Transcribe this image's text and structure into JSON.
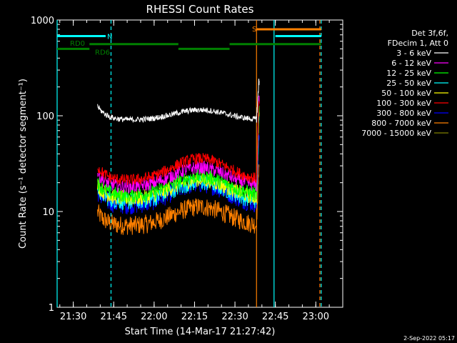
{
  "chart_data": {
    "type": "line",
    "title": "RHESSI Count Rates",
    "xlabel": "Start Time (14-Mar-17 21:27:42)",
    "ylabel": "Count Rate (s⁻¹ detector segment⁻¹)",
    "yscale": "log",
    "ylim": [
      1,
      1000
    ],
    "xlim": [
      "21:24",
      "23:10"
    ],
    "x_ticks": [
      "21:30",
      "21:45",
      "22:00",
      "22:15",
      "22:30",
      "22:45",
      "23:00"
    ],
    "y_ticks": [
      "1",
      "10",
      "100",
      "1000"
    ],
    "legend": {
      "placement": "right",
      "header": [
        "Det 3f,6f,",
        "FDecim 1, Att 0"
      ]
    },
    "series": [
      {
        "name": "3 - 6 keV",
        "color": "#ffffff",
        "base": 90,
        "amp": 1.28,
        "noise": 0.03,
        "spike": 230
      },
      {
        "name": "6 - 12 keV",
        "color": "#ff00ff",
        "base": 18,
        "amp": 1.6,
        "noise": 0.07,
        "spike": 150
      },
      {
        "name": "12 - 25 keV",
        "color": "#00ff00",
        "base": 14.5,
        "amp": 1.6,
        "noise": 0.08,
        "spike": 120
      },
      {
        "name": "25 - 50 keV",
        "color": "#00ffff",
        "base": 12.5,
        "amp": 1.62,
        "noise": 0.09,
        "spike": 100
      },
      {
        "name": "50 - 100 keV",
        "color": "#ffff00",
        "base": 13.5,
        "amp": 1.6,
        "noise": 0.08,
        "spike": 110
      },
      {
        "name": "100 - 300 keV",
        "color": "#ff0000",
        "base": 21,
        "amp": 1.7,
        "noise": 0.06,
        "spike": 140
      },
      {
        "name": "300 - 800 keV",
        "color": "#0000ff",
        "base": 11.5,
        "amp": 1.7,
        "noise": 0.1,
        "spike": 60
      },
      {
        "name": "800 - 7000 keV",
        "color": "#ff8000",
        "base": 7,
        "amp": 1.6,
        "noise": 0.1,
        "spike": 30
      },
      {
        "name": "7000 - 15000 keV",
        "color": "#808000",
        "base": 0,
        "amp": 1,
        "noise": 0,
        "spike": 0
      }
    ],
    "time_range": {
      "data_start": "21:39",
      "data_end": "22:39",
      "rise": "22:38"
    },
    "vertical_lines": [
      {
        "time": "21:24",
        "color": "#00ffff",
        "style": "solid"
      },
      {
        "time": "21:44",
        "color": "#00ffff",
        "style": "dashed"
      },
      {
        "time": "22:38",
        "color": "#ff8000",
        "style": "solid"
      },
      {
        "time": "22:44.5",
        "color": "#00ffff",
        "style": "solid"
      },
      {
        "time": "23:01.5",
        "color": "#ff8000",
        "style": "dashed"
      },
      {
        "time": "23:02",
        "color": "#00ffff",
        "style": "dashed"
      }
    ],
    "flag_bars": [
      {
        "label": "RD0",
        "color": "#008000",
        "y": 500,
        "segments": [
          [
            "21:24",
            "21:36"
          ]
        ]
      },
      {
        "label": "RD6",
        "color": "#008000",
        "y": 560,
        "segments": [
          [
            "21:36",
            "22:09"
          ],
          [
            "22:09",
            "22:28"
          ],
          [
            "22:28",
            "23:02"
          ]
        ],
        "step": [
          500,
          560,
          500,
          560
        ]
      },
      {
        "label": "N",
        "color": "#00ffff",
        "y": 680,
        "segments": [
          [
            "21:24",
            "21:42"
          ],
          [
            "22:45",
            "23:02"
          ]
        ]
      },
      {
        "label": "S",
        "color": "#ff8000",
        "y": 800,
        "segments": [
          [
            "22:38",
            "23:02"
          ]
        ]
      }
    ]
  },
  "footer": {
    "timestamp": "2-Sep-2022 05:17"
  }
}
